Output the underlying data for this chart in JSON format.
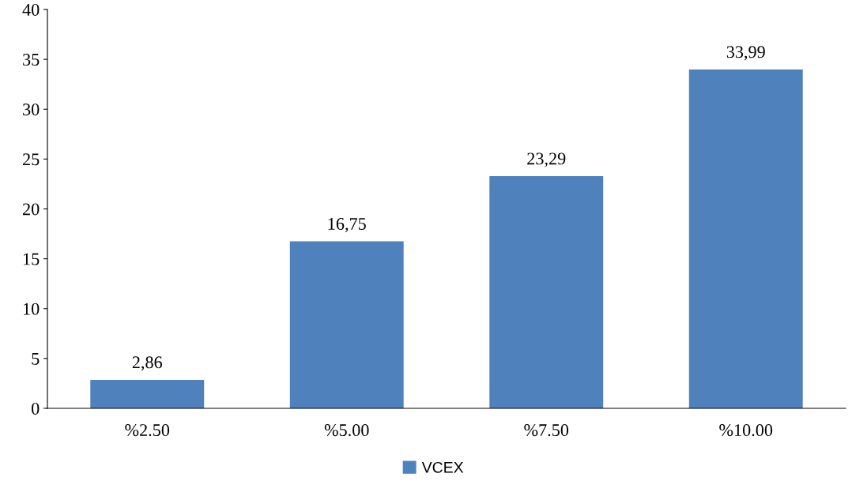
{
  "chart_data": {
    "type": "bar",
    "categories": [
      "%2.50",
      "%5.00",
      "%7.50",
      "%10.00"
    ],
    "series": [
      {
        "name": "VCEX",
        "color": "#4f81bd",
        "values": [
          2.86,
          16.75,
          23.29,
          33.99
        ],
        "value_labels": [
          "2,86",
          "16,75",
          "23,29",
          "33,99"
        ]
      }
    ],
    "ylim": [
      0,
      40
    ],
    "yticks": [
      0,
      5,
      10,
      15,
      20,
      25,
      30,
      35,
      40
    ],
    "grid": false,
    "legend": "bottom"
  }
}
